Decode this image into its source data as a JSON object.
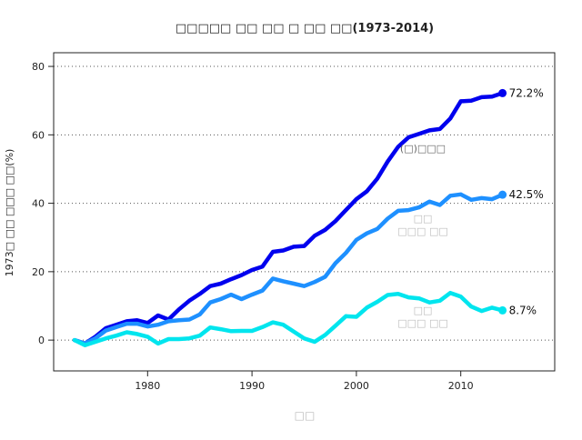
{
  "chart_data": {
    "type": "line",
    "title": "□□□□□ □□ □□ □ □□ □□(1973-2014)",
    "xlabel": "□□",
    "ylabel": "1973□ □□ □□□ □□(%)",
    "xlim": [
      1971,
      2019
    ],
    "ylim": [
      -9,
      84
    ],
    "x_ticks": [
      1980,
      1990,
      2000,
      2010
    ],
    "y_ticks": [
      0,
      20,
      40,
      60,
      80
    ],
    "grid": "horizontal dotted",
    "legend": "inline labels",
    "x": [
      1973,
      1974,
      1975,
      1976,
      1977,
      1978,
      1979,
      1980,
      1981,
      1982,
      1983,
      1984,
      1985,
      1986,
      1987,
      1988,
      1989,
      1990,
      1991,
      1992,
      1993,
      1994,
      1995,
      1996,
      1997,
      1998,
      1999,
      2000,
      2001,
      2002,
      2003,
      2004,
      2005,
      2006,
      2007,
      2008,
      2009,
      2010,
      2011,
      2012,
      2013,
      2014
    ],
    "series": [
      {
        "name": "(□)□□□",
        "color": "#0000ee",
        "end_label": "72.2%",
        "values": [
          0,
          -1,
          1,
          3.5,
          4.5,
          5.5,
          5.8,
          5,
          7.2,
          6,
          9,
          11.5,
          13.5,
          15.8,
          16.5,
          17.8,
          19,
          20.5,
          21.5,
          25.8,
          26.2,
          27.3,
          27.5,
          30.5,
          32.2,
          34.8,
          38,
          41.2,
          43.5,
          47.2,
          52.2,
          56.5,
          59.3,
          60.3,
          61.3,
          61.7,
          64.8,
          69.8,
          70,
          71,
          71.2,
          72.2
        ]
      },
      {
        "name": "□□ □□□ □□",
        "color": "#1e90ff",
        "end_label": "42.5%",
        "values": [
          0,
          -1,
          0.5,
          2.8,
          3.8,
          4.8,
          4.8,
          4,
          4.5,
          5.5,
          5.8,
          6,
          7.5,
          11,
          12,
          13.3,
          12,
          13.3,
          14.5,
          18,
          17.2,
          16.5,
          15.8,
          17,
          18.5,
          22.5,
          25.5,
          29.3,
          31.2,
          32.5,
          35.5,
          37.8,
          38,
          38.8,
          40.5,
          39.5,
          42.2,
          42.6,
          41,
          41.5,
          41.2,
          42.5
        ]
      },
      {
        "name": "□□ □□□ □□",
        "color": "#00e5ee",
        "end_label": "8.7%",
        "values": [
          0,
          -1.5,
          -0.5,
          0.5,
          1.3,
          2.3,
          1.8,
          1,
          -1,
          0.3,
          0.3,
          0.5,
          1.3,
          3.7,
          3.2,
          2.6,
          2.7,
          2.7,
          3.8,
          5.2,
          4.5,
          2.5,
          0.5,
          -0.5,
          1.5,
          4.2,
          7,
          6.8,
          9.5,
          11.2,
          13.2,
          13.5,
          12.5,
          12.2,
          11,
          11.5,
          13.8,
          12.7,
          9.8,
          8.5,
          9.5,
          8.7
        ]
      }
    ]
  }
}
